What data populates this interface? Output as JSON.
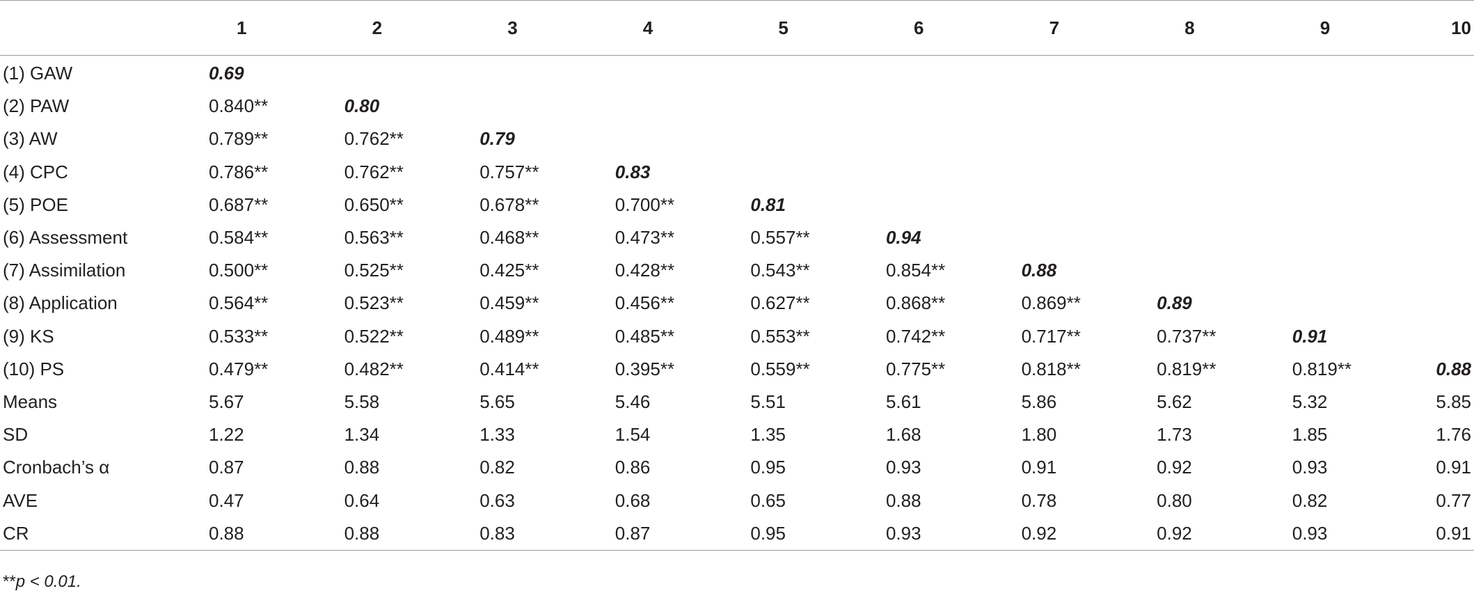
{
  "table": {
    "headers": [
      "",
      "1",
      "2",
      "3",
      "4",
      "5",
      "6",
      "7",
      "8",
      "9",
      "10"
    ],
    "rows": [
      {
        "label": "(1) GAW",
        "cells": [
          "0.69",
          "",
          "",
          "",
          "",
          "",
          "",
          "",
          "",
          ""
        ],
        "diag_index": 0
      },
      {
        "label": "(2) PAW",
        "cells": [
          "0.840**",
          "0.80",
          "",
          "",
          "",
          "",
          "",
          "",
          "",
          ""
        ],
        "diag_index": 1
      },
      {
        "label": "(3) AW",
        "cells": [
          "0.789**",
          "0.762**",
          "0.79",
          "",
          "",
          "",
          "",
          "",
          "",
          ""
        ],
        "diag_index": 2
      },
      {
        "label": "(4) CPC",
        "cells": [
          "0.786**",
          "0.762**",
          "0.757**",
          "0.83",
          "",
          "",
          "",
          "",
          "",
          ""
        ],
        "diag_index": 3
      },
      {
        "label": "(5) POE",
        "cells": [
          "0.687**",
          "0.650**",
          "0.678**",
          "0.700**",
          "0.81",
          "",
          "",
          "",
          "",
          ""
        ],
        "diag_index": 4
      },
      {
        "label": "(6) Assessment",
        "cells": [
          "0.584**",
          "0.563**",
          "0.468**",
          "0.473**",
          "0.557**",
          "0.94",
          "",
          "",
          "",
          ""
        ],
        "diag_index": 5
      },
      {
        "label": "(7) Assimilation",
        "cells": [
          "0.500**",
          "0.525**",
          "0.425**",
          "0.428**",
          "0.543**",
          "0.854**",
          "0.88",
          "",
          "",
          ""
        ],
        "diag_index": 6
      },
      {
        "label": "(8) Application",
        "cells": [
          "0.564**",
          "0.523**",
          "0.459**",
          "0.456**",
          "0.627**",
          "0.868**",
          "0.869**",
          "0.89",
          "",
          ""
        ],
        "diag_index": 7
      },
      {
        "label": "(9) KS",
        "cells": [
          "0.533**",
          "0.522**",
          "0.489**",
          "0.485**",
          "0.553**",
          "0.742**",
          "0.717**",
          "0.737**",
          "0.91",
          ""
        ],
        "diag_index": 8
      },
      {
        "label": "(10) PS",
        "cells": [
          "0.479**",
          "0.482**",
          "0.414**",
          "0.395**",
          "0.559**",
          "0.775**",
          "0.818**",
          "0.819**",
          "0.819**",
          "0.88"
        ],
        "diag_index": 9
      },
      {
        "label": "Means",
        "cells": [
          "5.67",
          "5.58",
          "5.65",
          "5.46",
          "5.51",
          "5.61",
          "5.86",
          "5.62",
          "5.32",
          "5.85"
        ],
        "diag_index": -1
      },
      {
        "label": "SD",
        "cells": [
          "1.22",
          "1.34",
          "1.33",
          "1.54",
          "1.35",
          "1.68",
          "1.80",
          "1.73",
          "1.85",
          "1.76"
        ],
        "diag_index": -1
      },
      {
        "label": "Cronbach’s α",
        "cells": [
          "0.87",
          "0.88",
          "0.82",
          "0.86",
          "0.95",
          "0.93",
          "0.91",
          "0.92",
          "0.93",
          "0.91"
        ],
        "diag_index": -1
      },
      {
        "label": "AVE",
        "cells": [
          "0.47",
          "0.64",
          "0.63",
          "0.68",
          "0.65",
          "0.88",
          "0.78",
          "0.80",
          "0.82",
          "0.77"
        ],
        "diag_index": -1
      },
      {
        "label": "CR",
        "cells": [
          "0.88",
          "0.88",
          "0.83",
          "0.87",
          "0.95",
          "0.93",
          "0.92",
          "0.92",
          "0.93",
          "0.91"
        ],
        "diag_index": -1
      }
    ]
  },
  "footnote": {
    "stars": "**",
    "text": "p < 0.01."
  }
}
